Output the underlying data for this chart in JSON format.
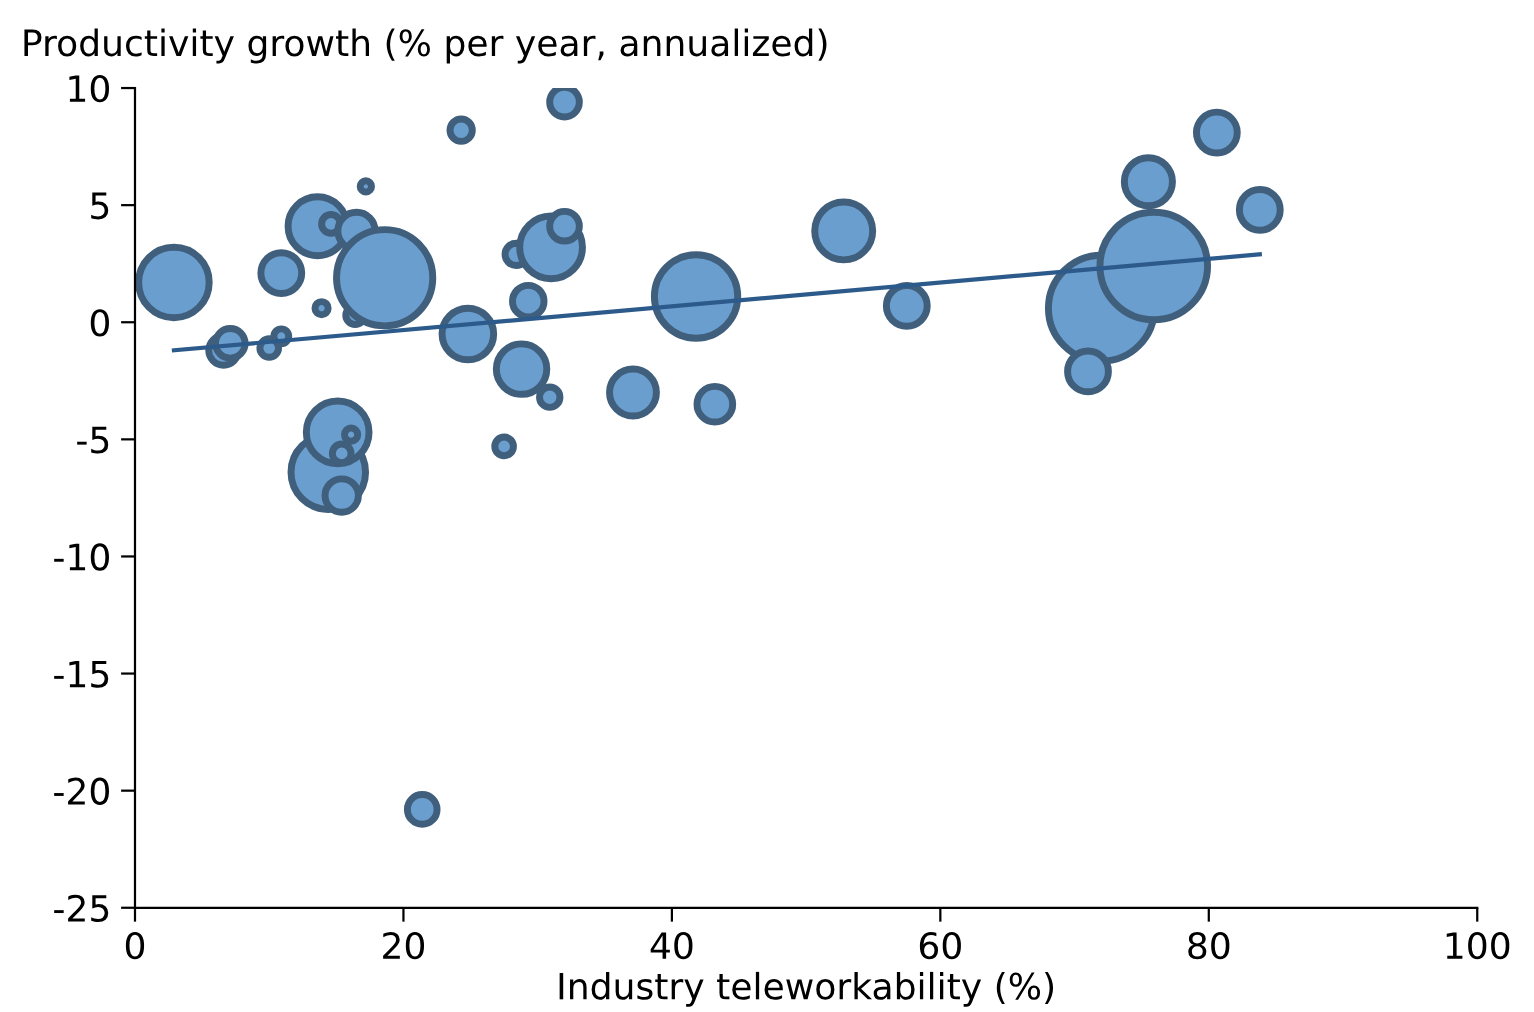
{
  "chart_data": {
    "type": "bubble",
    "ylabel": "Productivity growth (% per year, annualized)",
    "xlabel": "Industry teleworkability (%)",
    "xlim": [
      0,
      100
    ],
    "xticks": [
      0,
      20,
      40,
      60,
      80,
      100
    ],
    "ylim": [
      -25,
      10
    ],
    "yticks": [
      -25,
      -20,
      -15,
      -10,
      -5,
      0,
      5,
      10
    ],
    "grid": false,
    "legend": false,
    "series": [
      {
        "color": "#6a9ecf",
        "x": [
          2.9,
          6.6,
          7.1,
          10.0,
          10.9,
          10.9,
          13.6,
          14.6,
          13.9,
          16.5,
          17.2,
          16.4,
          18.6,
          24.3,
          32.0,
          24.8,
          28.4,
          31.0,
          32.0,
          29.3,
          28.8,
          30.9,
          27.5,
          37.1,
          43.2,
          41.8,
          52.8,
          57.5,
          72.0,
          71.0,
          75.9,
          75.5,
          80.6,
          83.8,
          21.4,
          14.4,
          15.1,
          16.1,
          15.4,
          15.4
        ],
        "values": [
          1.7,
          -1.2,
          -0.9,
          -1.1,
          -0.6,
          2.1,
          4.1,
          4.2,
          0.6,
          3.9,
          5.8,
          0.3,
          1.9,
          8.2,
          9.4,
          -0.5,
          2.9,
          3.2,
          4.1,
          0.9,
          -2.0,
          -3.2,
          -5.3,
          -3.0,
          -3.5,
          1.1,
          3.9,
          0.7,
          0.6,
          -2.1,
          2.4,
          6.0,
          8.1,
          4.8,
          -20.8,
          -6.4,
          -4.7,
          -4.8,
          -5.6,
          -7.4
        ],
        "sizes": [
          0.43,
          0.076,
          0.076,
          0.03,
          0.019,
          0.144,
          0.3,
          0.03,
          0.015,
          0.12,
          0.011,
          0.03,
          0.8,
          0.043,
          0.076,
          0.23,
          0.043,
          0.34,
          0.076,
          0.086,
          0.22,
          0.036,
          0.03,
          0.19,
          0.11,
          0.6,
          0.29,
          0.144,
          0.97,
          0.144,
          1.0,
          0.2,
          0.144,
          0.144,
          0.076,
          0.48,
          0.34,
          0.015,
          0.03,
          0.096
        ]
      },
      {
        "type": "line",
        "color": "#2c5a8a",
        "x": [
          2.9,
          83.8
        ],
        "values": [
          -1.2,
          2.9
        ]
      }
    ]
  }
}
